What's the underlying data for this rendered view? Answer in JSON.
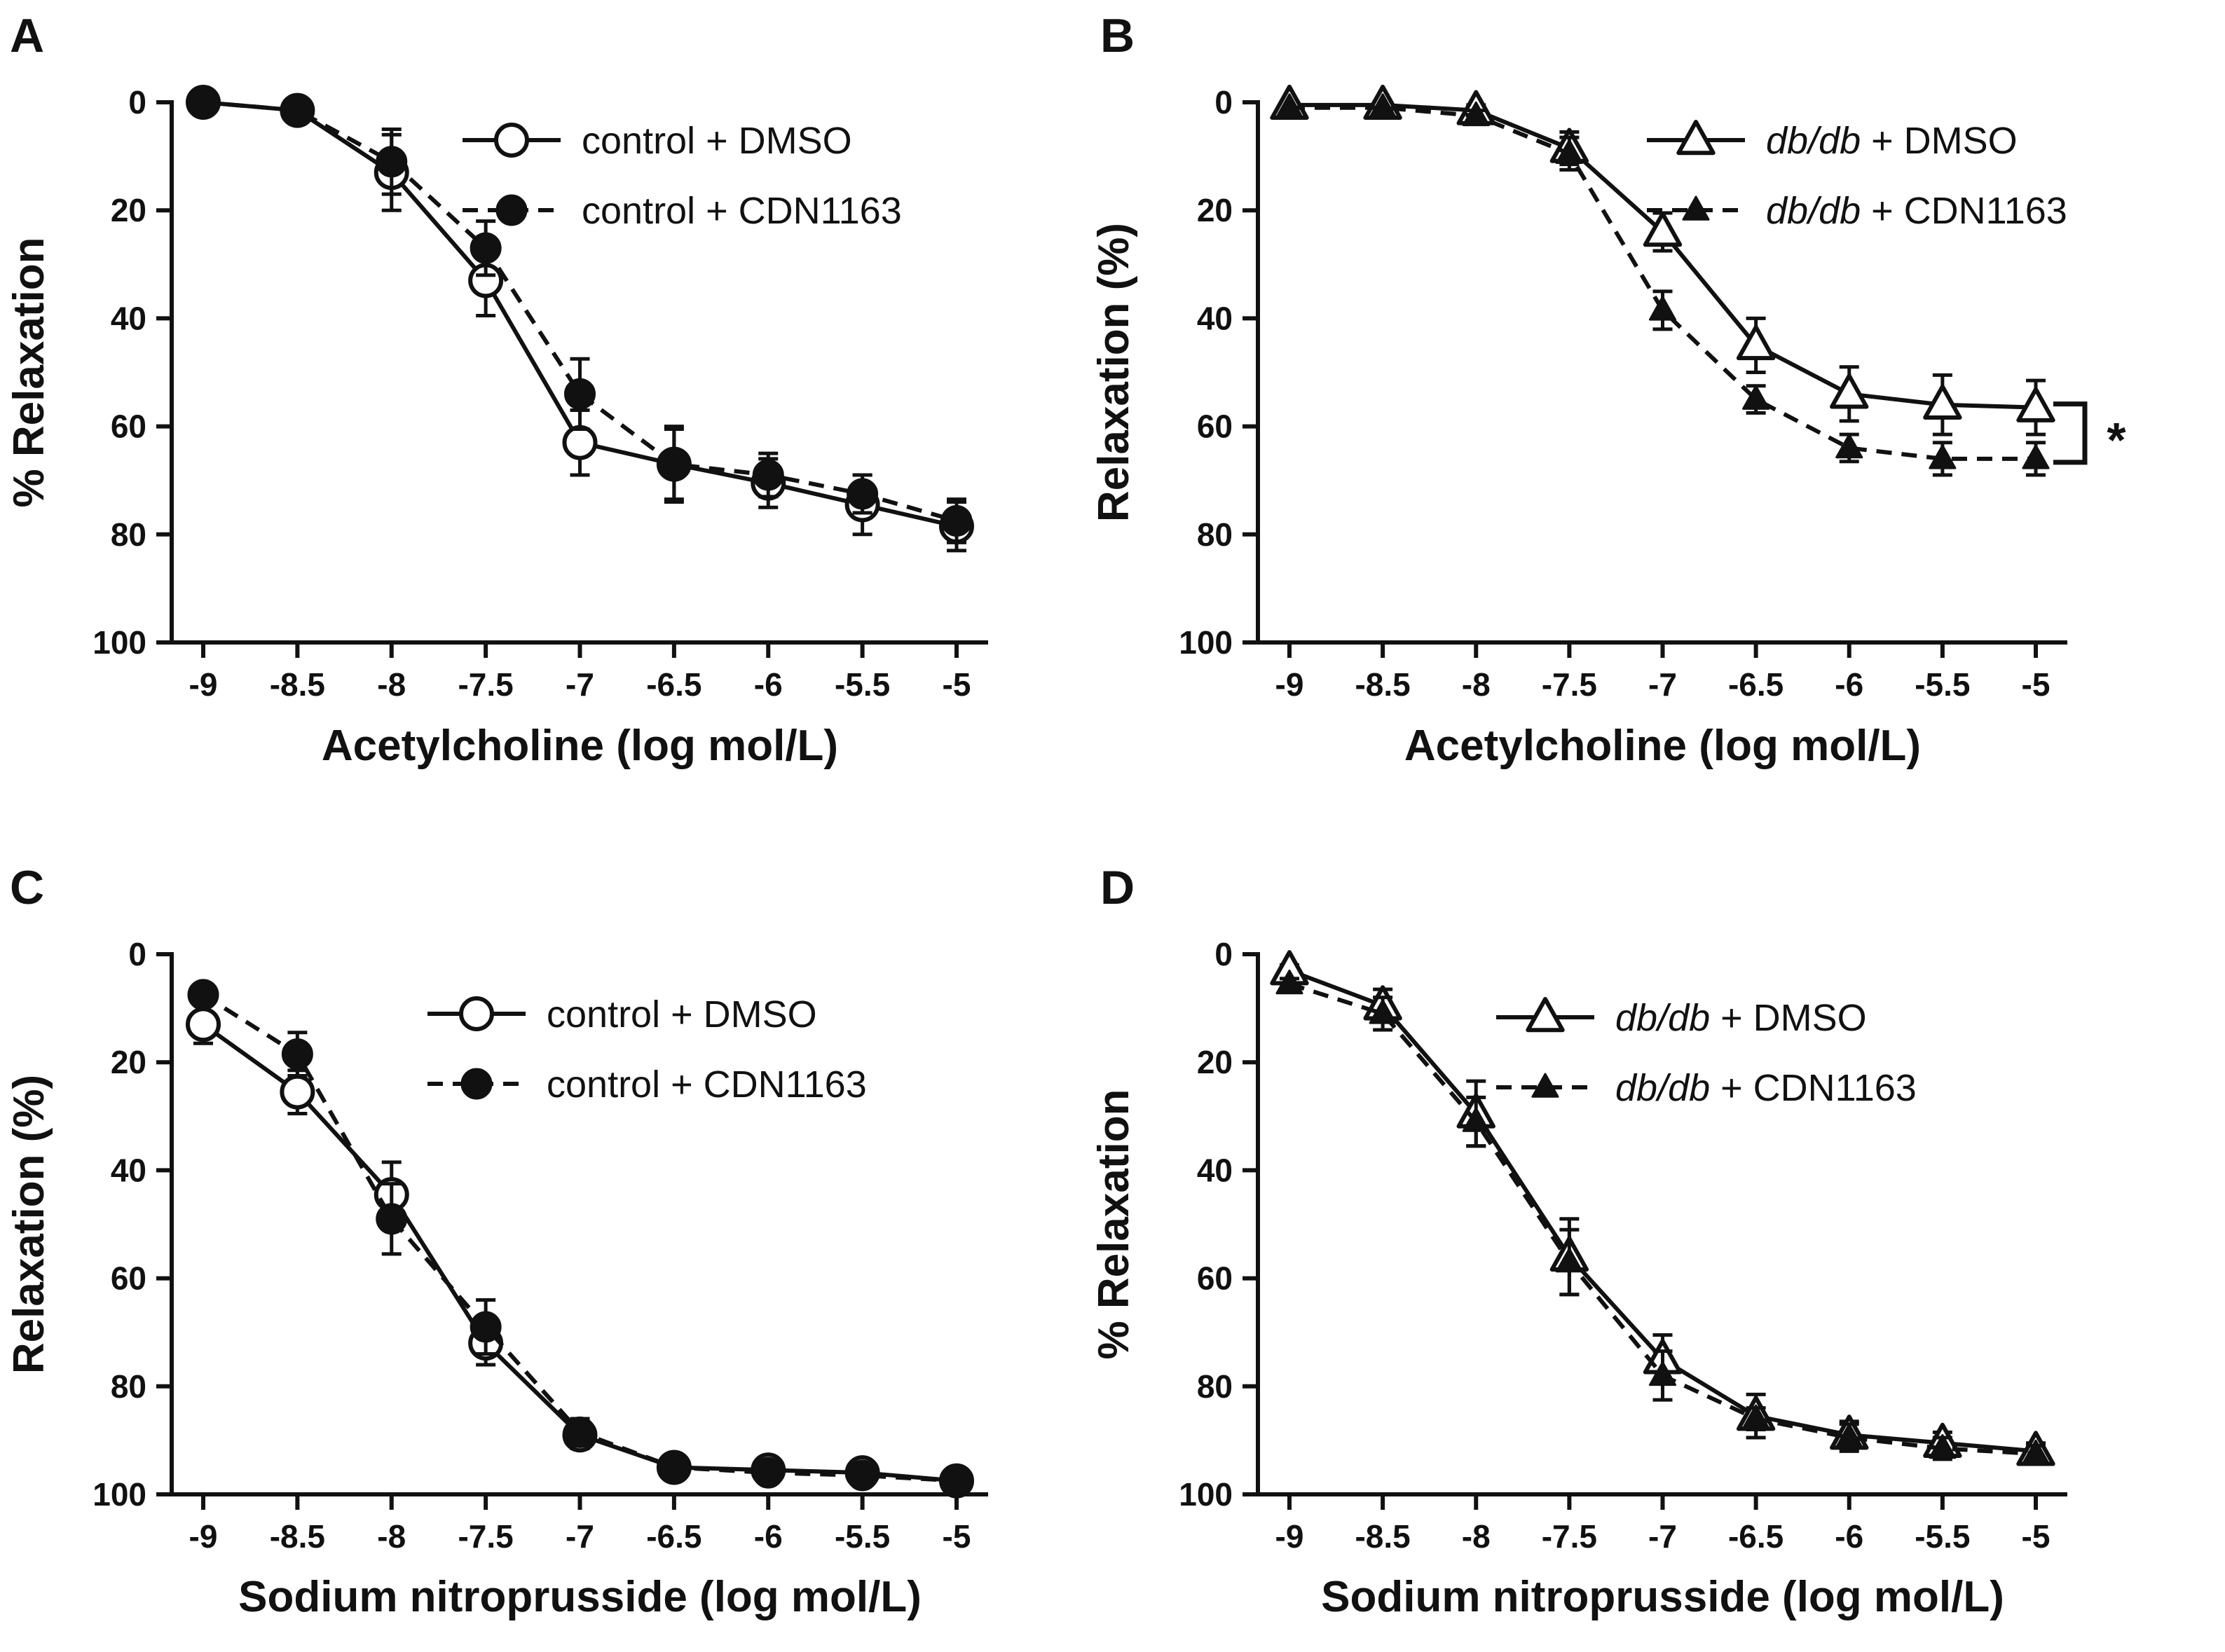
{
  "chart_data": [
    {
      "panel": "A",
      "type": "line",
      "xlabel": "Acetylcholine (log mol/L)",
      "ylabel": "% Relaxation",
      "x": [
        -9,
        -8.5,
        -8,
        -7.5,
        -7,
        -6.5,
        -6,
        -5.5,
        -5
      ],
      "x_tick_labels": [
        "-9",
        "-8.5",
        "-8",
        "-7.5",
        "-7",
        "-6.5",
        "-6",
        "-5.5",
        "-5"
      ],
      "y_tick_labels": [
        "0",
        "20",
        "40",
        "60",
        "80",
        "100"
      ],
      "ylim": [
        0,
        100
      ],
      "y_inverted": true,
      "series": [
        {
          "name_parts": [
            "control",
            " + DMSO"
          ],
          "italic_first": false,
          "marker": "circle-open",
          "dashed": false,
          "values": [
            0,
            1.5,
            13,
            33,
            63,
            67,
            70.5,
            74.5,
            78.5
          ],
          "errors": [
            0.5,
            0.5,
            7,
            6.5,
            6,
            6.5,
            4.5,
            5.5,
            4.5
          ]
        },
        {
          "name_parts": [
            "control",
            " + CDN1163"
          ],
          "italic_first": false,
          "marker": "circle-filled",
          "dashed": true,
          "values": [
            0,
            1.5,
            11,
            27,
            54,
            67,
            69,
            72.5,
            77.5
          ],
          "errors": [
            0.5,
            0.5,
            6,
            5,
            6.5,
            7,
            4,
            3.5,
            4
          ]
        }
      ],
      "annotation": ""
    },
    {
      "panel": "B",
      "type": "line",
      "xlabel": "Acetylcholine (log mol/L)",
      "ylabel": "Relaxation (%)",
      "x": [
        -9,
        -8.5,
        -8,
        -7.5,
        -7,
        -6.5,
        -6,
        -5.5,
        -5
      ],
      "x_tick_labels": [
        "-9",
        "-8.5",
        "-8",
        "-7.5",
        "-7",
        "-6.5",
        "-6",
        "-5.5",
        "-5"
      ],
      "y_tick_labels": [
        "0",
        "20",
        "40",
        "60",
        "80",
        "100"
      ],
      "ylim": [
        0,
        100
      ],
      "y_inverted": true,
      "series": [
        {
          "name_parts": [
            "db/db",
            " + DMSO"
          ],
          "italic_first": true,
          "marker": "triangle-open",
          "dashed": false,
          "values": [
            0.5,
            0.5,
            1.5,
            8.5,
            24,
            45,
            54,
            56,
            56.5
          ],
          "errors": [
            0.5,
            0.5,
            1,
            3,
            3.5,
            5,
            5,
            5.5,
            5
          ]
        },
        {
          "name_parts": [
            "db/db",
            " + CDN1163"
          ],
          "italic_first": true,
          "marker": "triangle-filled",
          "dashed": true,
          "values": [
            1,
            1,
            2.5,
            9.5,
            38.5,
            55,
            64,
            66,
            66
          ],
          "errors": [
            0.5,
            0.5,
            1,
            3,
            3.5,
            2.5,
            2.5,
            3,
            3
          ]
        }
      ],
      "annotation": "*"
    },
    {
      "panel": "C",
      "type": "line",
      "xlabel": "Sodium nitroprusside (log mol/L)",
      "ylabel": "Relaxation (%)",
      "x": [
        -9,
        -8.5,
        -8,
        -7.5,
        -7,
        -6.5,
        -6,
        -5.5,
        -5
      ],
      "x_tick_labels": [
        "-9",
        "-8.5",
        "-8",
        "-7.5",
        "-7",
        "-6.5",
        "-6",
        "-5.5",
        "-5"
      ],
      "y_tick_labels": [
        "0",
        "20",
        "40",
        "60",
        "80",
        "100"
      ],
      "ylim": [
        0,
        100
      ],
      "y_inverted": true,
      "series": [
        {
          "name_parts": [
            "control",
            " + DMSO"
          ],
          "italic_first": false,
          "marker": "circle-open",
          "dashed": false,
          "values": [
            13,
            25.5,
            44.5,
            72,
            89,
            95,
            95.5,
            96,
            97.5
          ],
          "errors": [
            3.5,
            4,
            6,
            4,
            2.5,
            1,
            0.5,
            0.5,
            0.5
          ]
        },
        {
          "name_parts": [
            "control",
            " + CDN1163"
          ],
          "italic_first": false,
          "marker": "circle-filled",
          "dashed": true,
          "values": [
            7.5,
            18.5,
            49,
            69,
            88.5,
            95,
            96,
            96.5,
            97.5
          ],
          "errors": [
            2,
            4,
            6.5,
            5,
            2.5,
            1,
            0.5,
            0.5,
            0.5
          ]
        }
      ],
      "annotation": ""
    },
    {
      "panel": "D",
      "type": "line",
      "xlabel": "Sodium nitroprusside (log mol/L)",
      "ylabel": "% Relaxation",
      "x": [
        -9,
        -8.5,
        -8,
        -7.5,
        -7,
        -6.5,
        -6,
        -5.5,
        -5
      ],
      "x_tick_labels": [
        "-9",
        "-8.5",
        "-8",
        "-7.5",
        "-7",
        "-6.5",
        "-6",
        "-5.5",
        "-5"
      ],
      "y_tick_labels": [
        "0",
        "20",
        "40",
        "60",
        "80",
        "100"
      ],
      "ylim": [
        0,
        100
      ],
      "y_inverted": true,
      "series": [
        {
          "name_parts": [
            "db/db",
            " + DMSO"
          ],
          "italic_first": true,
          "marker": "triangle-open",
          "dashed": false,
          "values": [
            3,
            9.5,
            29.5,
            56,
            75,
            85.5,
            89,
            90.5,
            92
          ],
          "errors": [
            1,
            3,
            6,
            7,
            4.5,
            4,
            2.5,
            2,
            1.5
          ]
        },
        {
          "name_parts": [
            "db/db",
            " + CDN1163"
          ],
          "italic_first": true,
          "marker": "triangle-filled",
          "dashed": true,
          "values": [
            5.5,
            11,
            31,
            57,
            78,
            86,
            89.5,
            91.5,
            92.5
          ],
          "errors": [
            1,
            3,
            4.5,
            6,
            4.5,
            2,
            2.5,
            2,
            1.5
          ]
        }
      ],
      "annotation": ""
    }
  ]
}
